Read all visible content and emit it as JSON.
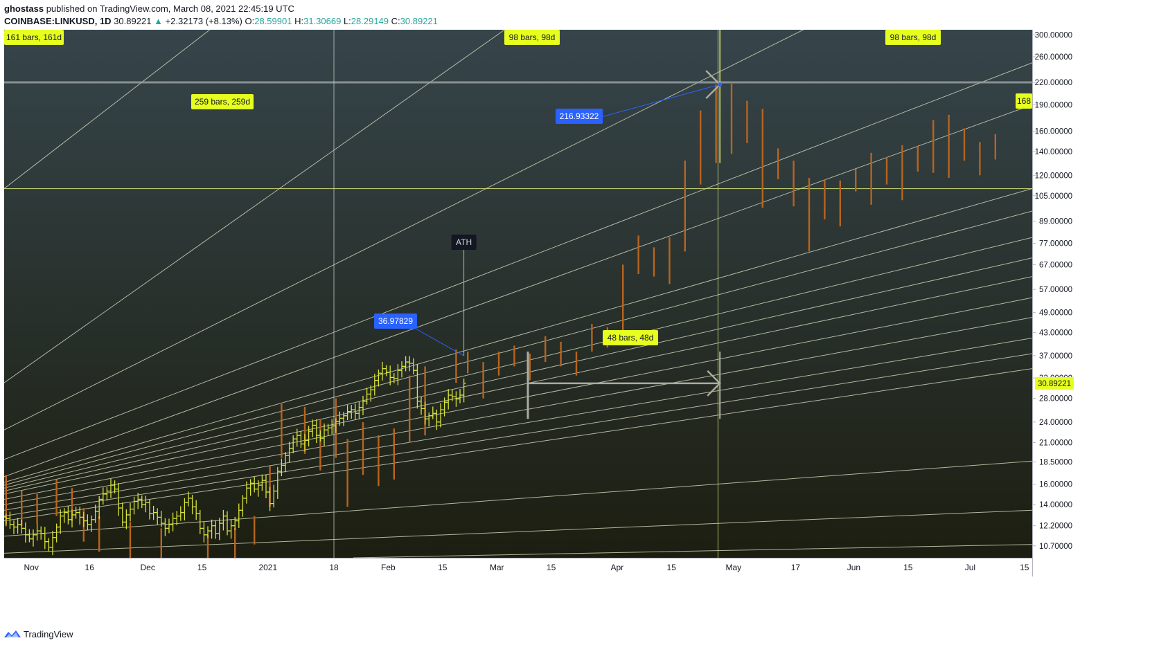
{
  "header": {
    "author": "ghostass",
    "published_text": "published on TradingView.com, March 08, 2021 22:45:19 UTC",
    "symbol": "COINBASE:LINKUSD, 1D",
    "last_price": "30.89221",
    "change_arrow": "▲",
    "change": "+2.32173 (+8.13%)",
    "o_label": "O:",
    "o_value": "28.59901",
    "h_label": "H:",
    "h_value": "31.30669",
    "l_label": "L:",
    "l_value": "28.29149",
    "c_label": "C:",
    "c_value": "30.89221"
  },
  "footer": {
    "brand": "TradingView",
    "icon": "tradingview-logo-icon"
  },
  "colors": {
    "bg_top": "#36454b",
    "bg_bottom": "#1c1e10",
    "axis_bg": "#ffffff",
    "bars_actual": "#d8e33a",
    "bars_projected": "#b8641e",
    "label_yellow": "#e6ff1f",
    "label_blue": "#2962ff",
    "guide_line": "#d7e07a",
    "fan_line": "#cdd2b8"
  },
  "chart_data": {
    "type": "ohlc",
    "title": "COINBASE:LINKUSD, 1D",
    "y_scale": "log",
    "ylim": [
      9.9,
      310
    ],
    "y_ticks": [
      "300.00000",
      "260.00000",
      "220.00000",
      "190.00000",
      "160.00000",
      "140.00000",
      "120.00000",
      "105.00000",
      "89.00000",
      "77.00000",
      "67.00000",
      "57.00000",
      "49.00000",
      "43.00000",
      "37.00000",
      "32.00000",
      "28.00000",
      "24.00000",
      "21.00000",
      "18.50000",
      "16.00000",
      "14.00000",
      "12.20000",
      "10.70000"
    ],
    "y_tick_values": [
      300,
      260,
      220,
      190,
      160,
      140,
      120,
      105,
      89,
      77,
      67,
      57,
      49,
      43,
      37,
      32,
      28,
      24,
      21,
      18.5,
      16,
      14,
      12.2,
      10.7
    ],
    "x_ticks": [
      "Nov",
      "16",
      "Dec",
      "15",
      "2021",
      "18",
      "Feb",
      "15",
      "Mar",
      "15",
      "Apr",
      "15",
      "May",
      "17",
      "Jun",
      "15",
      "Jul",
      "15"
    ],
    "x_tick_dates": [
      "2020-11-01",
      "2020-11-16",
      "2020-12-01",
      "2020-12-15",
      "2021-01-01",
      "2021-01-18",
      "2021-02-01",
      "2021-02-15",
      "2021-03-01",
      "2021-03-15",
      "2021-04-01",
      "2021-04-15",
      "2021-05-01",
      "2021-05-17",
      "2021-06-01",
      "2021-06-15",
      "2021-07-01",
      "2021-07-15"
    ],
    "x_range": [
      "2020-10-25",
      "2021-07-17"
    ],
    "current_price": "30.89221",
    "horizontal_levels": [
      {
        "value": 220,
        "style": "gray"
      },
      {
        "value": 110,
        "style": "yellow"
      }
    ],
    "vertical_markers": [
      "2021-01-18",
      "2021-04-27"
    ],
    "actual_bars": {
      "start": "2020-10-25",
      "closes": [
        12.8,
        12.3,
        12.1,
        12.3,
        12.0,
        11.5,
        11.2,
        11.5,
        11.8,
        11.6,
        11.0,
        10.6,
        11.3,
        12.1,
        13.0,
        13.3,
        12.7,
        13.1,
        13.3,
        12.9,
        12.6,
        12.3,
        12.7,
        13.4,
        14.5,
        15.0,
        15.3,
        15.9,
        15.5,
        13.7,
        12.5,
        13.1,
        13.6,
        14.3,
        14.5,
        14.0,
        14.2,
        13.2,
        13.3,
        12.9,
        12.4,
        12.0,
        12.3,
        12.8,
        13.0,
        13.3,
        14.2,
        14.6,
        13.8,
        13.2,
        12.0,
        11.5,
        11.8,
        12.2,
        11.6,
        12.4,
        13.0,
        11.8,
        12.2,
        12.6,
        13.5,
        14.6,
        15.6,
        16.1,
        15.5,
        15.9,
        16.4,
        15.2,
        14.1,
        15.3,
        17.4,
        18.1,
        19.3,
        20.2,
        21.5,
        22.0,
        20.8,
        21.3,
        22.6,
        23.5,
        22.0,
        21.6,
        22.8,
        23.1,
        23.4,
        24.1,
        24.6,
        25.0,
        25.7,
        26.0,
        25.4,
        26.4,
        27.5,
        28.8,
        29.6,
        31.5,
        33.0,
        34.0,
        33.2,
        32.1,
        31.9,
        33.6,
        34.5,
        35.5,
        35.2,
        33.6,
        27.5,
        26.2,
        24.5,
        25.0,
        25.4,
        24.0,
        26.0,
        27.3,
        28.6,
        28.3,
        27.9,
        28.6,
        30.9
      ]
    },
    "projected_bars": [
      {
        "date": "2020-10-25",
        "high": 17.0,
        "low": 12.3
      },
      {
        "date": "2020-10-29",
        "high": 15.3,
        "low": 12.2
      },
      {
        "date": "2020-11-02",
        "high": 15.0,
        "low": 12.3
      },
      {
        "date": "2020-11-07",
        "high": 16.5,
        "low": 13.0
      },
      {
        "date": "2020-11-11",
        "high": 15.6,
        "low": 12.6
      },
      {
        "date": "2020-11-14",
        "high": 13.7,
        "low": 11.0
      },
      {
        "date": "2020-11-18",
        "high": 13.0,
        "low": 10.3
      },
      {
        "date": "2020-11-26",
        "high": 12.5,
        "low": 9.8
      },
      {
        "date": "2020-12-04",
        "high": 12.0,
        "low": 9.5
      },
      {
        "date": "2020-12-16",
        "high": 11.5,
        "low": 9.3
      },
      {
        "date": "2020-12-23",
        "high": 12.0,
        "low": 9.8
      },
      {
        "date": "2020-12-28",
        "high": 13.0,
        "low": 10.8
      },
      {
        "date": "2021-01-01",
        "high": 18.0,
        "low": 13.8
      },
      {
        "date": "2021-01-04",
        "high": 27.0,
        "low": 19.0
      },
      {
        "date": "2021-01-10",
        "high": 26.5,
        "low": 19.5
      },
      {
        "date": "2021-01-14",
        "high": 24.5,
        "low": 17.5
      },
      {
        "date": "2021-01-18",
        "high": 28.0,
        "low": 19.0
      },
      {
        "date": "2021-01-21",
        "high": 21.5,
        "low": 13.8
      },
      {
        "date": "2021-01-25",
        "high": 24.0,
        "low": 17.0
      },
      {
        "date": "2021-01-29",
        "high": 22.0,
        "low": 15.8
      },
      {
        "date": "2021-02-02",
        "high": 23.0,
        "low": 16.5
      },
      {
        "date": "2021-02-06",
        "high": 32.5,
        "low": 21.0
      },
      {
        "date": "2021-02-10",
        "high": 34.5,
        "low": 22.0
      },
      {
        "date": "2021-02-18",
        "high": 38.5,
        "low": 31.0
      },
      {
        "date": "2021-02-21",
        "high": 38.0,
        "low": 33.0
      },
      {
        "date": "2021-02-25",
        "high": 35.5,
        "low": 28.0
      },
      {
        "date": "2021-03-01",
        "high": 38.0,
        "low": 32.5
      },
      {
        "date": "2021-03-05",
        "high": 39.5,
        "low": 34.5
      },
      {
        "date": "2021-03-09",
        "high": 37.5,
        "low": 31.5
      },
      {
        "date": "2021-03-13",
        "high": 42.0,
        "low": 35.5
      },
      {
        "date": "2021-03-17",
        "high": 40.5,
        "low": 34.5
      },
      {
        "date": "2021-03-21",
        "high": 38.0,
        "low": 32.5
      },
      {
        "date": "2021-03-25",
        "high": 45.5,
        "low": 38.0
      },
      {
        "date": "2021-03-29",
        "high": 44.5,
        "low": 39.0
      },
      {
        "date": "2021-04-02",
        "high": 67.0,
        "low": 42.5
      },
      {
        "date": "2021-04-06",
        "high": 81.0,
        "low": 63.0
      },
      {
        "date": "2021-04-10",
        "high": 75.0,
        "low": 62.0
      },
      {
        "date": "2021-04-14",
        "high": 80.0,
        "low": 59.0
      },
      {
        "date": "2021-04-18",
        "high": 132.0,
        "low": 73.0
      },
      {
        "date": "2021-04-22",
        "high": 183.0,
        "low": 113.0
      },
      {
        "date": "2021-04-26",
        "high": 216.9,
        "low": 130.0
      },
      {
        "date": "2021-04-30",
        "high": 218.0,
        "low": 138.0
      },
      {
        "date": "2021-05-04",
        "high": 195.0,
        "low": 148.0
      },
      {
        "date": "2021-05-08",
        "high": 185.0,
        "low": 97.0
      },
      {
        "date": "2021-05-12",
        "high": 143.0,
        "low": 117.0
      },
      {
        "date": "2021-05-16",
        "high": 132.0,
        "low": 98.0
      },
      {
        "date": "2021-05-20",
        "high": 118.0,
        "low": 73.0
      },
      {
        "date": "2021-05-24",
        "high": 117.0,
        "low": 90.0
      },
      {
        "date": "2021-05-28",
        "high": 116.0,
        "low": 86.0
      },
      {
        "date": "2021-06-01",
        "high": 125.0,
        "low": 108.0
      },
      {
        "date": "2021-06-05",
        "high": 139.0,
        "low": 99.0
      },
      {
        "date": "2021-06-09",
        "high": 135.0,
        "low": 113.0
      },
      {
        "date": "2021-06-13",
        "high": 146.0,
        "low": 102.0
      },
      {
        "date": "2021-06-17",
        "high": 145.0,
        "low": 123.0
      },
      {
        "date": "2021-06-21",
        "high": 172.0,
        "low": 122.0
      },
      {
        "date": "2021-06-25",
        "high": 178.0,
        "low": 118.0
      },
      {
        "date": "2021-06-29",
        "high": 163.0,
        "low": 132.0
      },
      {
        "date": "2021-07-03",
        "high": 149.0,
        "low": 120.0
      },
      {
        "date": "2021-07-07",
        "high": 157.0,
        "low": 133.0
      }
    ],
    "fan_lines": [
      {
        "from": [
          "2020-10-25",
          110
        ],
        "to": [
          "2020-12-17",
          310
        ]
      },
      {
        "from": [
          "2020-10-25",
          31
        ],
        "to": [
          "2021-03-03",
          310
        ]
      },
      {
        "from": [
          "2020-10-25",
          22.8
        ],
        "to": [
          "2021-05-19",
          310
        ]
      },
      {
        "from": [
          "2020-10-25",
          18.8
        ],
        "to": [
          "2021-07-17",
          250
        ]
      },
      {
        "from": [
          "2020-10-25",
          16.8
        ],
        "to": [
          "2021-07-17",
          190
        ]
      },
      {
        "from": [
          "2020-10-25",
          16.2
        ],
        "to": [
          "2021-07-17",
          110
        ]
      },
      {
        "from": [
          "2020-10-25",
          15.9
        ],
        "to": [
          "2021-07-17",
          95
        ]
      },
      {
        "from": [
          "2020-10-25",
          15.6
        ],
        "to": [
          "2021-07-17",
          80
        ]
      },
      {
        "from": [
          "2020-10-25",
          15.3
        ],
        "to": [
          "2021-07-17",
          70
        ]
      },
      {
        "from": [
          "2020-10-25",
          15.0
        ],
        "to": [
          "2021-07-17",
          62
        ]
      },
      {
        "from": [
          "2020-10-25",
          14.5
        ],
        "to": [
          "2021-07-17",
          54
        ]
      },
      {
        "from": [
          "2020-10-25",
          14.0
        ],
        "to": [
          "2021-07-17",
          47.5
        ]
      },
      {
        "from": [
          "2020-10-25",
          13.5
        ],
        "to": [
          "2021-07-17",
          41.5
        ]
      },
      {
        "from": [
          "2020-10-25",
          13.0
        ],
        "to": [
          "2021-07-17",
          37.5
        ]
      },
      {
        "from": [
          "2020-10-25",
          12.6
        ],
        "to": [
          "2021-07-17",
          34
        ]
      },
      {
        "from": [
          "2020-10-25",
          11.4
        ],
        "to": [
          "2021-07-17",
          18.6
        ]
      },
      {
        "from": [
          "2020-10-25",
          10.2
        ],
        "to": [
          "2021-07-17",
          13.5
        ]
      },
      {
        "from": [
          "2021-01-23",
          9.9
        ],
        "to": [
          "2021-07-17",
          10.8
        ]
      }
    ],
    "annotations": {
      "ath": {
        "text": "ATH",
        "date": "2021-02-20"
      },
      "price_label_1": {
        "text": "36.97829",
        "value": 36.97829,
        "date": "2021-02-20"
      },
      "price_label_2": {
        "text": "216.93322",
        "value": 216.93322,
        "date": "2021-04-27"
      },
      "bars_label_1": {
        "text": "161 bars, 161d"
      },
      "bars_label_2": {
        "text": "98 bars, 98d"
      },
      "bars_label_3": {
        "text": "259 bars, 259d"
      },
      "bars_label_4": {
        "text": "98 bars, 98d"
      },
      "bars_label_5": {
        "text": "48 bars, 48d"
      },
      "bars_label_6": {
        "text": "168"
      }
    },
    "projection_arrow": {
      "from_date": "2021-03-08",
      "to_date": "2021-04-27",
      "value": 30.89221,
      "bracket": [
        24.5,
        38.0
      ]
    },
    "ath_arrow": {
      "to_date": "2021-04-27",
      "value": 216.93322,
      "bracket": [
        130,
        310
      ]
    }
  }
}
